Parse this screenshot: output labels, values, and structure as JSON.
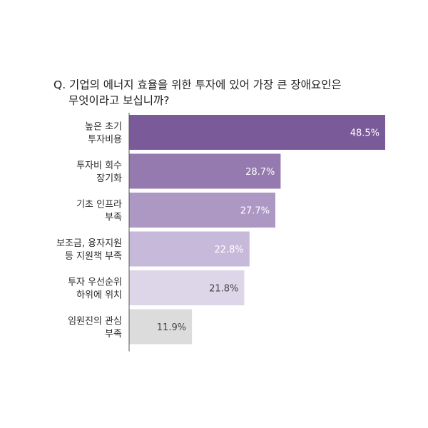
{
  "chart_data": {
    "type": "bar",
    "orientation": "horizontal",
    "title_lines": [
      "Q. 기업의 에너지 효율을 위한 투자에 있어 가장 큰 장애요인은",
      "무엇이라고 보십니까?"
    ],
    "categories": [
      [
        "높은 초기",
        "투자비용"
      ],
      [
        "투자비 회수",
        "장기화"
      ],
      [
        "기초 인프라",
        "부족"
      ],
      [
        "보조금, 융자지원",
        "등 지원책 부족"
      ],
      [
        "투자 우선순위",
        "하위에 위치"
      ],
      [
        "임원진의 관심",
        "부족"
      ]
    ],
    "values": [
      48.5,
      28.7,
      27.7,
      22.8,
      21.8,
      11.9
    ],
    "value_labels": [
      "48.5%",
      "28.7%",
      "27.7%",
      "22.8%",
      "21.8%",
      "11.9%"
    ],
    "unit": "%",
    "bar_colors": [
      "#7b5a99",
      "#947aae",
      "#ad98c4",
      "#c6b9d9",
      "#ddd5e8",
      "#dcdcdc"
    ],
    "value_label_colors": [
      "#ffffff",
      "#ffffff",
      "#ffffff",
      "#ffffff",
      "#444444",
      "#444444"
    ],
    "grid": false,
    "legend": "none"
  }
}
